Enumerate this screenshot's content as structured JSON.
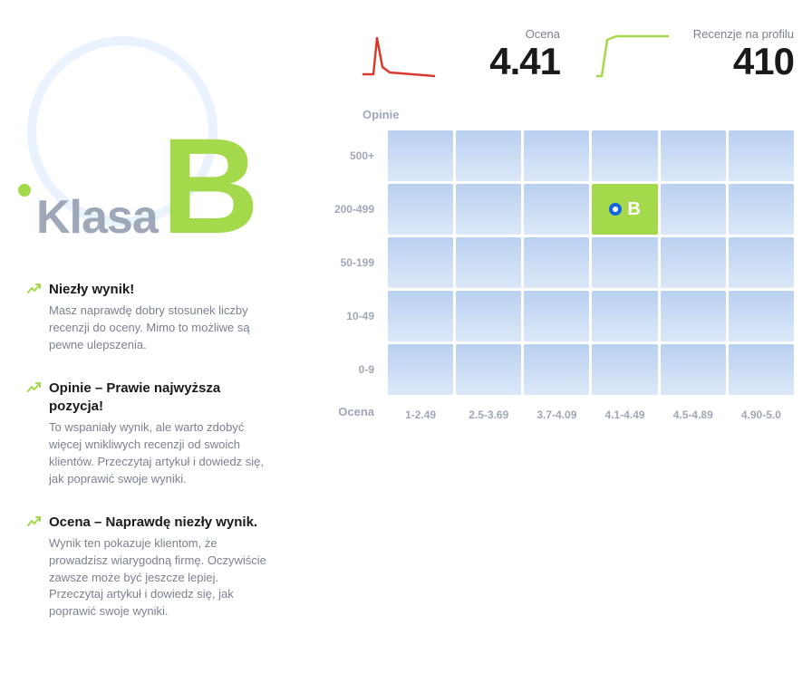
{
  "grade": {
    "label": "Klasa",
    "letter": "B",
    "accent_color": "#a3d94a",
    "circle_color": "#e9f2fd",
    "label_color": "#9fa8b8"
  },
  "metrics": {
    "rating": {
      "label": "Ocena",
      "value": "4.41",
      "spark_color": "#d83a2e",
      "spark_points": [
        [
          0,
          48
        ],
        [
          12,
          48
        ],
        [
          16,
          8
        ],
        [
          22,
          40
        ],
        [
          30,
          46
        ],
        [
          80,
          50
        ]
      ]
    },
    "reviews": {
      "label": "Recenzje na profilu",
      "value": "410",
      "spark_color": "#a3d94a",
      "spark_points": [
        [
          0,
          50
        ],
        [
          6,
          50
        ],
        [
          12,
          10
        ],
        [
          22,
          6
        ],
        [
          80,
          6
        ]
      ]
    }
  },
  "insights": [
    {
      "title": "Niezły wynik!",
      "desc": "Masz naprawdę dobry stosunek liczby recenzji do oceny. Mimo to możliwe są pewne ulepszenia."
    },
    {
      "title": "Opinie – Prawie najwyższa pozycja!",
      "desc": "To wspaniały wynik, ale warto zdobyć więcej wnikliwych recenzji od swoich klientów. Przeczytaj artykuł i dowiedz się, jak poprawić swoje wyniki."
    },
    {
      "title": "Ocena – Naprawdę niezły wynik.",
      "desc": "Wynik ten pokazuje klientom, że prowadzisz wiarygodną firmę. Oczywiście zawsze może być jeszcze lepiej. Przeczytaj artykuł i dowiedz się, jak poprawić swoje wyniki."
    }
  ],
  "matrix": {
    "y_title": "Opinie",
    "x_title": "Ocena",
    "y_labels": [
      "500+",
      "200-499",
      "50-199",
      "10-49",
      "0-9"
    ],
    "x_labels": [
      "1-2.49",
      "2.5-3.69",
      "3.7-4.09",
      "4.1-4.49",
      "4.5-4.89",
      "4.90-5.0"
    ],
    "cell_bg_top": "#b9d0f0",
    "cell_bg_bottom": "#dce8f8",
    "active_cell": {
      "row": 1,
      "col": 3,
      "letter": "B",
      "bg": "#a3d94a",
      "marker_ring": "#1466e0"
    }
  }
}
